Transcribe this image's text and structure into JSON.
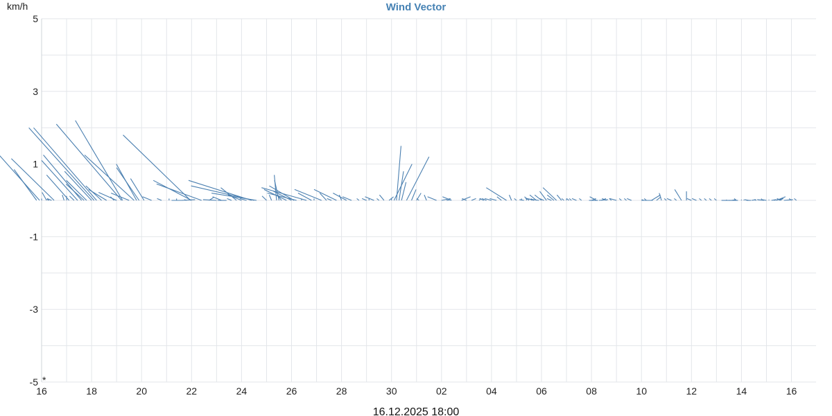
{
  "chart_data": {
    "type": "vector",
    "title": "Wind Vector",
    "y_unit": "km/h",
    "footer_timestamp": "16.12.2025 18:00",
    "x_tick_labels": [
      "16",
      "18",
      "20",
      "22",
      "24",
      "26",
      "28",
      "30",
      "02",
      "04",
      "06",
      "08",
      "10",
      "12",
      "14",
      "16"
    ],
    "x_label_positions_days": [
      0,
      1,
      2,
      3,
      4,
      5,
      6,
      7,
      8,
      9,
      10,
      11,
      12,
      13,
      14,
      15
    ],
    "x_range_days": [
      0,
      15.3
    ],
    "x_grid_step_days": 0.5,
    "ylim": [
      -5,
      5
    ],
    "y_tick_values": [
      -5,
      -3,
      -1,
      1,
      3,
      5
    ],
    "y_grid_step": 1,
    "series_color": "#4a7fb0",
    "grid": true,
    "vectors": [
      [
        -0.1,
        0.85,
        0.5
      ],
      [
        -0.04,
        1.25,
        0.9
      ],
      [
        0.0,
        0.05,
        0.0
      ],
      [
        0.1,
        0.22,
        0.1
      ],
      [
        0.15,
        0.03,
        0.05
      ],
      [
        0.2,
        0.05,
        0.1
      ],
      [
        0.25,
        1.15,
        0.95
      ],
      [
        0.45,
        0.15,
        0.04
      ],
      [
        0.5,
        0.12,
        0.0
      ],
      [
        0.55,
        0.7,
        0.5
      ],
      [
        0.65,
        0.12,
        0.1
      ],
      [
        0.72,
        1.1,
        0.8
      ],
      [
        0.8,
        1.25,
        0.85
      ],
      [
        0.85,
        0.45,
        0.4
      ],
      [
        0.9,
        0.55,
        0.45
      ],
      [
        1.0,
        0.8,
        0.6
      ],
      [
        1.05,
        2.0,
        1.45
      ],
      [
        1.1,
        2.0,
        1.4
      ],
      [
        1.2,
        0.4,
        0.35
      ],
      [
        1.3,
        0.3,
        0.4
      ],
      [
        1.45,
        0.1,
        0.08
      ],
      [
        1.5,
        0.22,
        0.4
      ],
      [
        1.6,
        2.1,
        1.45
      ],
      [
        1.62,
        2.2,
        1.05
      ],
      [
        1.75,
        0.2,
        0.4
      ],
      [
        1.85,
        1.25,
        1.1
      ],
      [
        1.9,
        1.0,
        0.45
      ],
      [
        1.95,
        0.9,
        0.5
      ],
      [
        2.05,
        0.6,
        0.3
      ],
      [
        2.2,
        0.1,
        0.2
      ],
      [
        2.4,
        0.05,
        0.1
      ],
      [
        2.55,
        0.05,
        0.0
      ],
      [
        2.6,
        0.0,
        -0.25
      ],
      [
        2.7,
        0.05,
        0.0
      ],
      [
        2.8,
        0.02,
        -0.3
      ],
      [
        2.9,
        0.02,
        0.05
      ],
      [
        2.98,
        1.8,
        1.5
      ],
      [
        3.0,
        0.55,
        0.85
      ],
      [
        3.2,
        0.45,
        1.0
      ],
      [
        3.35,
        0.08,
        -0.1
      ],
      [
        3.5,
        0.02,
        0.3
      ],
      [
        3.6,
        0.1,
        0.2
      ],
      [
        3.7,
        0.0,
        0.2
      ],
      [
        3.8,
        0.05,
        0.1
      ],
      [
        3.9,
        0.35,
        0.35
      ],
      [
        4.0,
        0.15,
        0.3
      ],
      [
        4.1,
        0.05,
        0.15
      ],
      [
        4.2,
        0.55,
        1.4
      ],
      [
        4.25,
        0.4,
        1.4
      ],
      [
        4.3,
        0.2,
        1.0
      ],
      [
        4.5,
        0.12,
        0.1
      ],
      [
        4.6,
        0.15,
        0.05
      ],
      [
        4.7,
        0.7,
        0.05
      ],
      [
        4.75,
        0.55,
        0.1
      ],
      [
        4.8,
        0.15,
        0.1
      ],
      [
        4.9,
        0.3,
        0.5
      ],
      [
        5.0,
        0.25,
        0.4
      ],
      [
        5.05,
        0.4,
        0.55
      ],
      [
        5.1,
        0.2,
        0.65
      ],
      [
        5.2,
        0.05,
        0.0
      ],
      [
        5.3,
        0.35,
        1.0
      ],
      [
        5.4,
        0.2,
        0.3
      ],
      [
        5.45,
        0.05,
        0.0
      ],
      [
        5.6,
        0.3,
        0.6
      ],
      [
        5.7,
        0.2,
        0.15
      ],
      [
        5.8,
        0.05,
        0.1
      ],
      [
        5.9,
        0.3,
        0.5
      ],
      [
        6.0,
        0.15,
        0.05
      ],
      [
        6.1,
        0.2,
        0.3
      ],
      [
        6.2,
        0.1,
        0.2
      ],
      [
        6.35,
        0.05,
        0.05
      ],
      [
        6.5,
        0.05,
        0.1
      ],
      [
        6.55,
        0.05,
        0.0
      ],
      [
        6.65,
        0.1,
        0.2
      ],
      [
        6.75,
        0.05,
        0.05
      ],
      [
        6.85,
        0.15,
        0.1
      ],
      [
        6.95,
        0.1,
        -0.1
      ],
      [
        7.0,
        0.05,
        0.0
      ],
      [
        7.05,
        1.0,
        -0.4
      ],
      [
        7.1,
        1.5,
        -0.1
      ],
      [
        7.15,
        0.8,
        -0.1
      ],
      [
        7.2,
        0.5,
        -0.1
      ],
      [
        7.3,
        1.2,
        -0.5
      ],
      [
        7.4,
        0.3,
        -0.1
      ],
      [
        7.5,
        0.2,
        -0.1
      ],
      [
        7.55,
        0.05,
        0.05
      ],
      [
        7.7,
        0.15,
        0.05
      ],
      [
        7.9,
        0.1,
        0.2
      ],
      [
        8.0,
        0.05,
        -0.2
      ],
      [
        8.1,
        0.02,
        -0.1
      ],
      [
        8.2,
        0.1,
        0.2
      ],
      [
        8.4,
        0.1,
        -0.2
      ],
      [
        8.5,
        0.05,
        0.1
      ],
      [
        8.6,
        0.05,
        -0.1
      ],
      [
        8.75,
        0.05,
        -0.05
      ],
      [
        8.85,
        0.05,
        0.1
      ],
      [
        8.9,
        0.05,
        0.1
      ],
      [
        9.0,
        0.05,
        0.15
      ],
      [
        9.1,
        0.05,
        0.15
      ],
      [
        9.2,
        0.1,
        0.1
      ],
      [
        9.3,
        0.35,
        0.45
      ],
      [
        9.4,
        0.15,
        0.05
      ],
      [
        9.5,
        0.05,
        0.05
      ],
      [
        9.6,
        0.05,
        0.0
      ],
      [
        9.65,
        0.02,
        0.1
      ],
      [
        9.7,
        0.05,
        0.0
      ],
      [
        9.75,
        0.1,
        0.1
      ],
      [
        9.8,
        0.05,
        0.0
      ],
      [
        9.85,
        0.05,
        0.15
      ],
      [
        9.9,
        0.15,
        0.15
      ],
      [
        9.95,
        0.05,
        0.3
      ],
      [
        10.0,
        0.15,
        0.15
      ],
      [
        10.05,
        0.05,
        0.1
      ],
      [
        10.1,
        0.25,
        0.15
      ],
      [
        10.2,
        0.05,
        0.1
      ],
      [
        10.25,
        0.15,
        0.15
      ],
      [
        10.3,
        0.35,
        0.3
      ],
      [
        10.4,
        0.15,
        0.1
      ],
      [
        10.45,
        0.05,
        0.05
      ],
      [
        10.5,
        0.05,
        0.0
      ],
      [
        10.55,
        0.05,
        0.05
      ],
      [
        10.6,
        0.05,
        0.05
      ],
      [
        10.7,
        0.05,
        0.1
      ],
      [
        10.8,
        0.05,
        0.05
      ],
      [
        10.95,
        0.0,
        -0.2
      ],
      [
        11.0,
        0.05,
        -0.1
      ],
      [
        11.1,
        0.1,
        0.15
      ],
      [
        11.15,
        0.02,
        -0.2
      ],
      [
        11.2,
        0.05,
        -0.1
      ],
      [
        11.3,
        0.05,
        0.1
      ],
      [
        11.4,
        0.05,
        0.05
      ],
      [
        11.5,
        0.05,
        0.15
      ],
      [
        11.6,
        0.05,
        0.05
      ],
      [
        11.7,
        0.05,
        0.05
      ],
      [
        11.8,
        0.05,
        0.1
      ],
      [
        12.0,
        0.0,
        -0.25
      ],
      [
        12.05,
        0.02,
        0.05
      ],
      [
        12.1,
        0.05,
        0.05
      ],
      [
        12.2,
        0.15,
        -0.2
      ],
      [
        12.3,
        0.1,
        -0.1
      ],
      [
        12.4,
        0.2,
        0.05
      ],
      [
        12.5,
        0.05,
        0.05
      ],
      [
        12.6,
        0.05,
        0.1
      ],
      [
        12.7,
        0.05,
        0.05
      ],
      [
        12.8,
        0.3,
        0.15
      ],
      [
        12.9,
        0.25,
        0.0
      ],
      [
        13.0,
        0.05,
        0.1
      ],
      [
        13.1,
        0.05,
        0.1
      ],
      [
        13.2,
        0.05,
        0.05
      ],
      [
        13.3,
        0.05,
        0.05
      ],
      [
        13.4,
        0.05,
        0.05
      ],
      [
        13.5,
        0.05,
        0.05
      ],
      [
        13.6,
        0.0,
        -0.2
      ],
      [
        13.7,
        0.02,
        0.0
      ],
      [
        13.75,
        0.0,
        -0.2
      ],
      [
        13.8,
        0.02,
        -0.1
      ],
      [
        13.9,
        0.05,
        0.05
      ],
      [
        14.0,
        0.02,
        0.0
      ],
      [
        14.05,
        0.02,
        0.0
      ],
      [
        14.1,
        0.0,
        -0.1
      ],
      [
        14.15,
        0.02,
        0.1
      ],
      [
        14.2,
        0.02,
        -0.1
      ],
      [
        14.3,
        0.02,
        0.05
      ],
      [
        14.35,
        0.02,
        0.0
      ],
      [
        14.4,
        0.05,
        0.0
      ],
      [
        14.45,
        0.02,
        0.15
      ],
      [
        14.5,
        0.02,
        0.1
      ],
      [
        14.55,
        0.02,
        0.0
      ],
      [
        14.6,
        0.02,
        -0.1
      ],
      [
        14.65,
        0.05,
        -0.2
      ],
      [
        14.7,
        0.1,
        -0.2
      ],
      [
        14.75,
        0.05,
        -0.1
      ],
      [
        14.8,
        0.05,
        0.1
      ],
      [
        14.85,
        0.02,
        -0.2
      ],
      [
        14.95,
        0.02,
        0.0
      ],
      [
        15.0,
        0.05,
        0.05
      ],
      [
        15.1,
        0.05,
        0.05
      ]
    ]
  }
}
